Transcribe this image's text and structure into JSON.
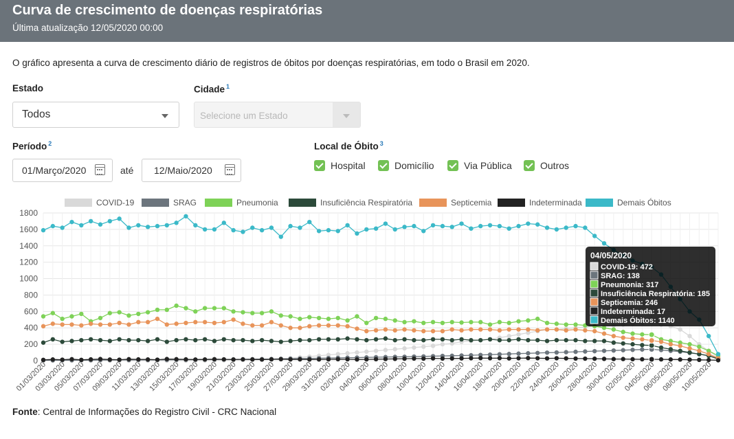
{
  "header": {
    "title": "Curva de crescimento de doenças respiratórias",
    "subtitle": "Última atualização 12/05/2020 00:00"
  },
  "description": "O gráfico apresenta a curva de crescimento diário de registros de óbitos por doenças respiratórias, em todo o Brasil em 2020.",
  "filters": {
    "estado": {
      "label": "Estado",
      "value": "Todos"
    },
    "cidade": {
      "label": "Cidade",
      "note": "1",
      "placeholder": "Selecione um Estado"
    },
    "periodo": {
      "label": "Período",
      "note": "2",
      "start": "01/Março/2020",
      "separator": "até",
      "end": "12/Maio/2020"
    },
    "local": {
      "label": "Local de Óbito",
      "note": "3",
      "options": [
        {
          "label": "Hospital",
          "checked": true
        },
        {
          "label": "Domicílio",
          "checked": true
        },
        {
          "label": "Via Pública",
          "checked": true
        },
        {
          "label": "Outros",
          "checked": true
        }
      ]
    }
  },
  "footer": {
    "label": "Fonte",
    "text": ": Central de Informações do Registro Civil - CRC Nacional"
  },
  "colors": {
    "header_bg": "#6b737a",
    "check_green": "#73c154",
    "link_blue": "#2a7ab8"
  },
  "chart_data": {
    "type": "line",
    "ylim": [
      0,
      1800
    ],
    "yticks": [
      0,
      200,
      400,
      600,
      800,
      1000,
      1200,
      1400,
      1600,
      1800
    ],
    "grid": true,
    "legend_position": "top",
    "start_date": "2020-03-01",
    "x": [
      "01/03/2020",
      "02/03/2020",
      "03/03/2020",
      "04/03/2020",
      "05/03/2020",
      "06/03/2020",
      "07/03/2020",
      "08/03/2020",
      "09/03/2020",
      "10/03/2020",
      "11/03/2020",
      "12/03/2020",
      "13/03/2020",
      "14/03/2020",
      "15/03/2020",
      "16/03/2020",
      "17/03/2020",
      "18/03/2020",
      "19/03/2020",
      "20/03/2020",
      "21/03/2020",
      "22/03/2020",
      "23/03/2020",
      "24/03/2020",
      "25/03/2020",
      "26/03/2020",
      "27/03/2020",
      "28/03/2020",
      "29/03/2020",
      "30/03/2020",
      "31/03/2020",
      "01/04/2020",
      "02/04/2020",
      "03/04/2020",
      "04/04/2020",
      "05/04/2020",
      "06/04/2020",
      "07/04/2020",
      "08/04/2020",
      "09/04/2020",
      "10/04/2020",
      "11/04/2020",
      "12/04/2020",
      "13/04/2020",
      "14/04/2020",
      "15/04/2020",
      "16/04/2020",
      "17/04/2020",
      "18/04/2020",
      "19/04/2020",
      "20/04/2020",
      "21/04/2020",
      "22/04/2020",
      "23/04/2020",
      "24/04/2020",
      "25/04/2020",
      "26/04/2020",
      "27/04/2020",
      "28/04/2020",
      "29/04/2020",
      "30/04/2020",
      "01/05/2020",
      "02/05/2020",
      "03/05/2020",
      "04/05/2020",
      "05/05/2020",
      "06/05/2020",
      "07/05/2020",
      "08/05/2020",
      "09/05/2020",
      "10/05/2020",
      "11/05/2020"
    ],
    "series": [
      {
        "name": "COVID-19",
        "color": "#d9d9d9",
        "values": [
          0,
          0,
          0,
          0,
          0,
          0,
          0,
          0,
          0,
          0,
          0,
          0,
          0,
          0,
          0,
          0,
          1,
          2,
          3,
          4,
          6,
          8,
          10,
          15,
          20,
          25,
          30,
          40,
          50,
          60,
          70,
          80,
          90,
          100,
          110,
          120,
          130,
          140,
          150,
          160,
          170,
          180,
          200,
          210,
          230,
          240,
          250,
          260,
          280,
          300,
          320,
          340,
          360,
          380,
          380,
          390,
          400,
          410,
          420,
          420,
          430,
          440,
          450,
          460,
          472,
          440,
          420,
          380,
          300,
          200,
          120,
          40
        ]
      },
      {
        "name": "SRAG",
        "color": "#6c757d",
        "values": [
          5,
          5,
          6,
          6,
          7,
          7,
          8,
          8,
          9,
          9,
          10,
          10,
          10,
          11,
          11,
          12,
          12,
          13,
          14,
          15,
          16,
          17,
          18,
          19,
          20,
          22,
          24,
          26,
          28,
          30,
          32,
          34,
          36,
          38,
          40,
          42,
          44,
          46,
          48,
          50,
          52,
          55,
          58,
          60,
          63,
          66,
          70,
          74,
          78,
          82,
          86,
          90,
          94,
          98,
          100,
          104,
          108,
          112,
          116,
          120,
          124,
          128,
          132,
          136,
          138,
          130,
          120,
          110,
          95,
          80,
          60,
          25
        ]
      },
      {
        "name": "Pneumonia",
        "color": "#7ed257",
        "values": [
          540,
          580,
          510,
          540,
          570,
          480,
          520,
          580,
          590,
          550,
          570,
          590,
          620,
          620,
          670,
          640,
          600,
          640,
          640,
          640,
          600,
          590,
          580,
          580,
          600,
          550,
          540,
          510,
          530,
          520,
          510,
          520,
          490,
          540,
          460,
          520,
          510,
          490,
          470,
          480,
          460,
          470,
          460,
          470,
          465,
          470,
          470,
          440,
          470,
          460,
          480,
          490,
          510,
          460,
          450,
          440,
          440,
          430,
          420,
          400,
          380,
          350,
          330,
          320,
          317,
          260,
          240,
          220,
          200,
          170,
          120,
          60
        ]
      },
      {
        "name": "Insuficiência Respiratória",
        "color": "#2c4a3a",
        "values": [
          220,
          260,
          230,
          240,
          250,
          260,
          250,
          240,
          260,
          250,
          250,
          240,
          260,
          230,
          250,
          260,
          250,
          260,
          240,
          260,
          250,
          250,
          240,
          250,
          240,
          230,
          240,
          250,
          250,
          260,
          260,
          260,
          270,
          260,
          250,
          260,
          270,
          250,
          260,
          250,
          250,
          260,
          260,
          250,
          260,
          250,
          250,
          260,
          250,
          250,
          260,
          250,
          250,
          240,
          250,
          250,
          250,
          240,
          240,
          240,
          220,
          210,
          200,
          190,
          185,
          160,
          140,
          120,
          100,
          80,
          60,
          20
        ]
      },
      {
        "name": "Septicemia",
        "color": "#e8945a",
        "values": [
          420,
          450,
          440,
          440,
          430,
          450,
          440,
          440,
          460,
          440,
          470,
          470,
          510,
          440,
          450,
          460,
          470,
          470,
          460,
          470,
          500,
          450,
          430,
          430,
          470,
          430,
          400,
          400,
          420,
          430,
          430,
          430,
          420,
          390,
          360,
          370,
          380,
          370,
          380,
          370,
          360,
          360,
          360,
          380,
          370,
          380,
          380,
          380,
          370,
          380,
          380,
          380,
          370,
          380,
          380,
          370,
          380,
          370,
          360,
          330,
          300,
          280,
          270,
          260,
          246,
          230,
          200,
          180,
          150,
          120,
          80,
          30
        ]
      },
      {
        "name": "Indeterminada",
        "color": "#222222",
        "values": [
          10,
          15,
          12,
          18,
          10,
          16,
          20,
          14,
          12,
          18,
          16,
          15,
          12,
          20,
          18,
          16,
          14,
          15,
          18,
          16,
          14,
          16,
          15,
          14,
          16,
          18,
          15,
          16,
          14,
          15,
          16,
          18,
          17,
          15,
          16,
          18,
          20,
          22,
          24,
          26,
          25,
          28,
          26,
          27,
          28,
          30,
          32,
          30,
          31,
          28,
          30,
          32,
          30,
          28,
          30,
          28,
          26,
          25,
          24,
          22,
          20,
          20,
          18,
          17,
          17,
          16,
          15,
          14,
          12,
          10,
          8,
          5
        ]
      },
      {
        "name": "Demais Óbitos",
        "color": "#3bb9c8",
        "values": [
          1590,
          1640,
          1620,
          1690,
          1650,
          1700,
          1660,
          1700,
          1730,
          1620,
          1650,
          1630,
          1640,
          1650,
          1680,
          1760,
          1650,
          1600,
          1600,
          1680,
          1590,
          1570,
          1620,
          1590,
          1620,
          1510,
          1640,
          1620,
          1690,
          1580,
          1590,
          1580,
          1650,
          1550,
          1600,
          1610,
          1670,
          1600,
          1630,
          1640,
          1580,
          1650,
          1640,
          1630,
          1670,
          1610,
          1640,
          1650,
          1640,
          1610,
          1640,
          1670,
          1660,
          1620,
          1600,
          1620,
          1640,
          1620,
          1520,
          1430,
          1350,
          1280,
          1220,
          1180,
          1140,
          1050,
          900,
          750,
          600,
          500,
          300,
          80
        ]
      }
    ],
    "tooltip": {
      "title": "04/05/2020",
      "index": 64,
      "rows": [
        "COVID-19: 472",
        "SRAG: 138",
        "Pneumonia: 317",
        "Insuficiência Respiratória: 185",
        "Septicemia: 246",
        "Indeterminada: 17",
        "Demais Óbitos: 1140"
      ]
    }
  }
}
